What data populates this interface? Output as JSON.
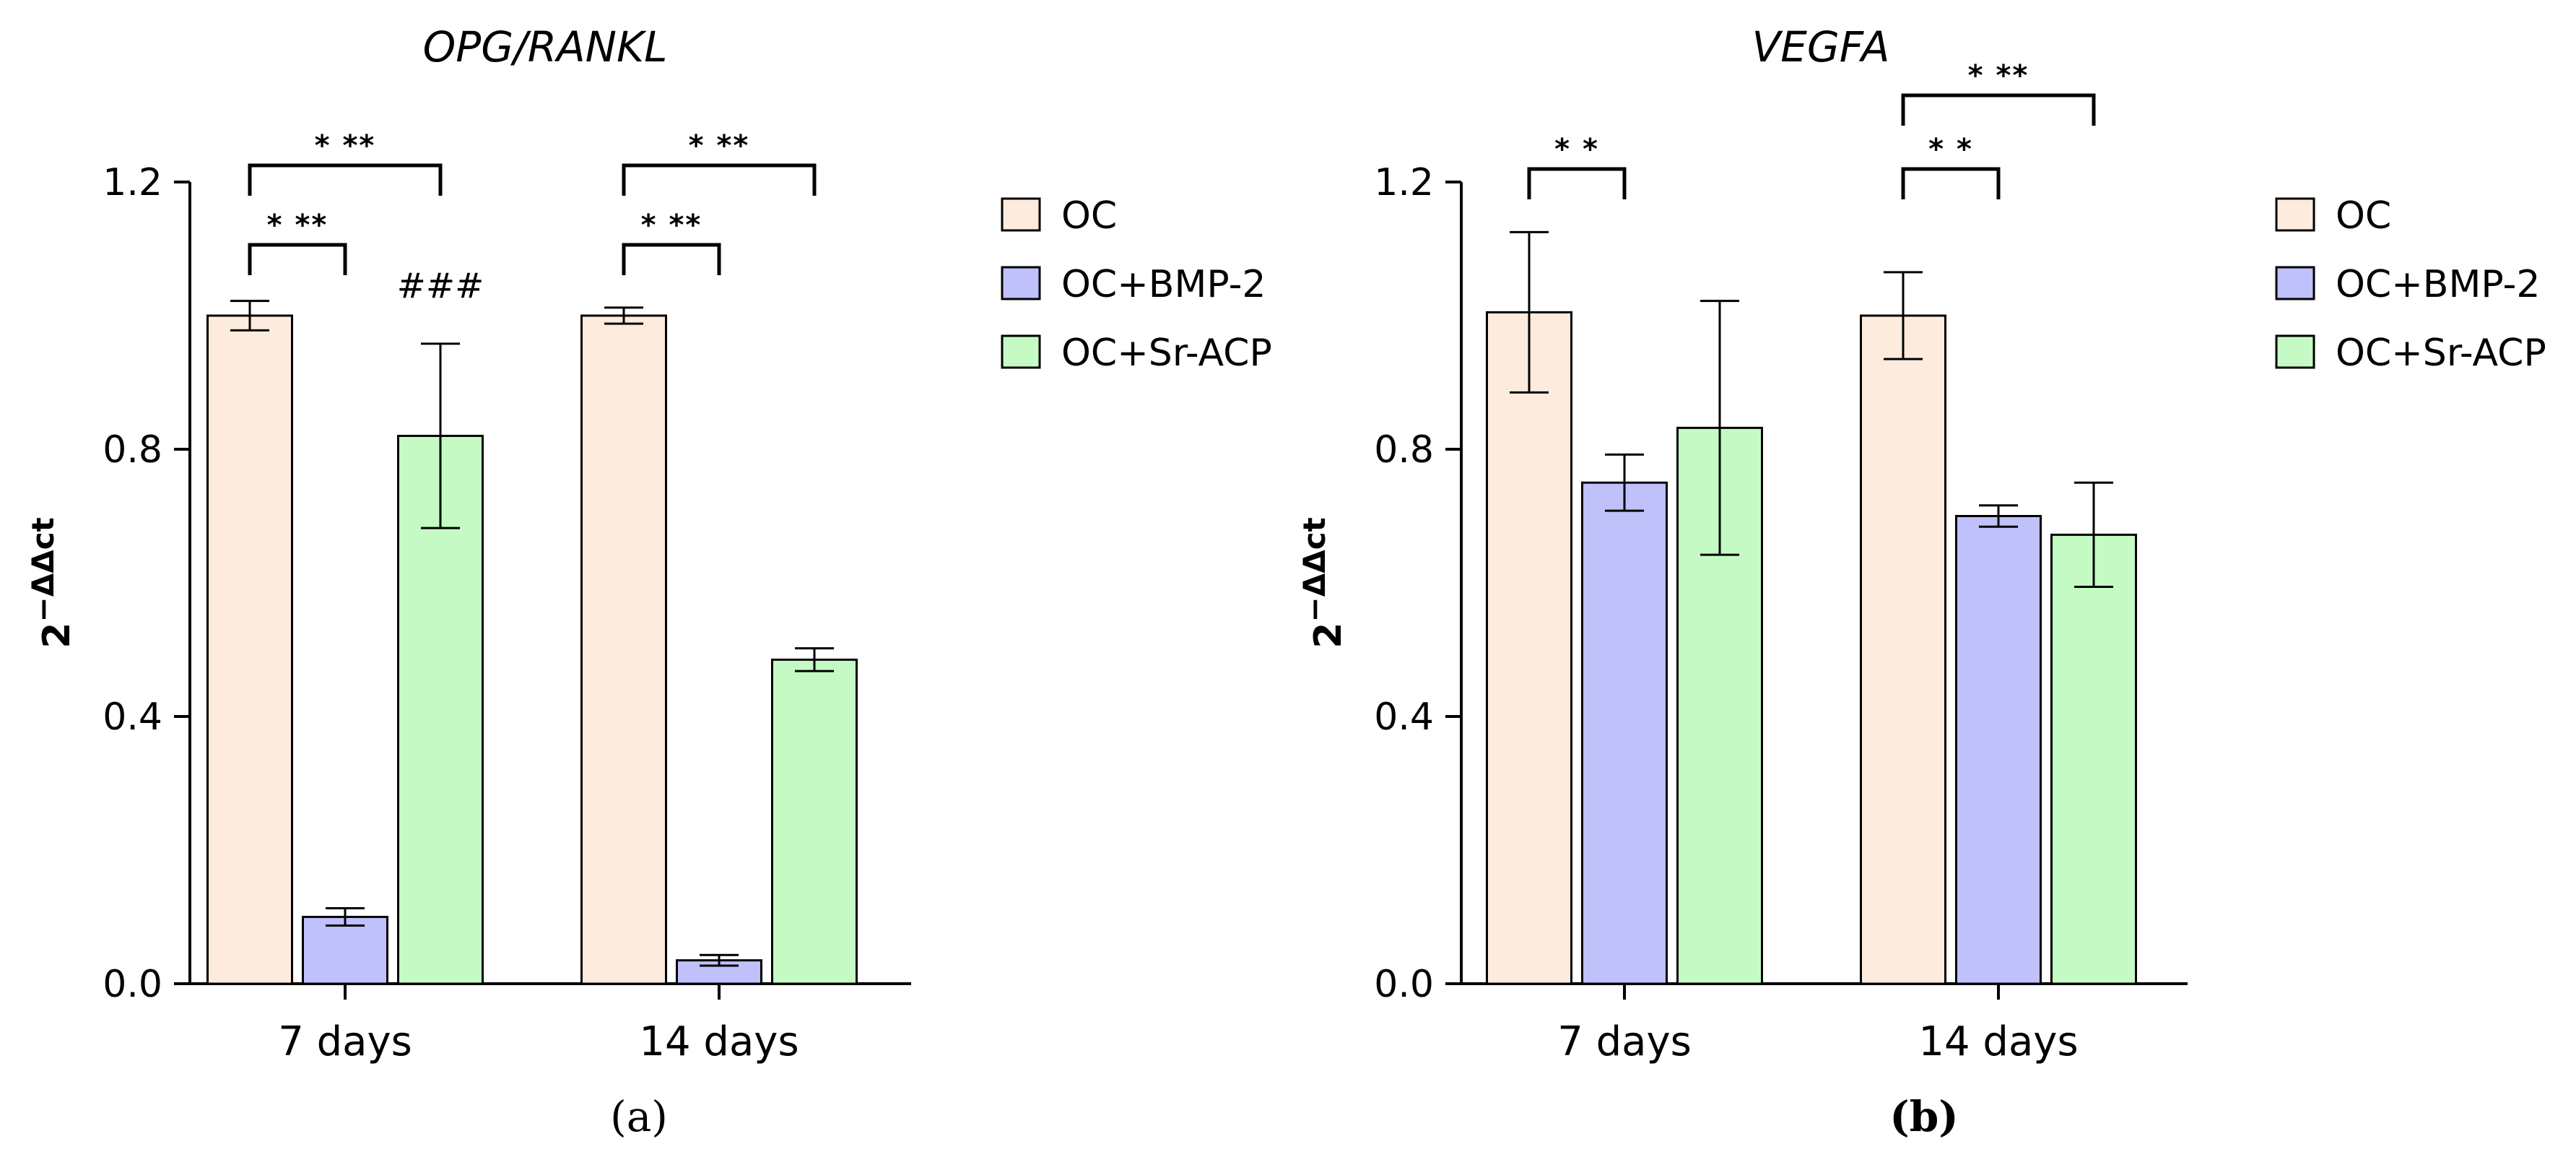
{
  "colors": {
    "OC": "#fdebdd",
    "OC+BMP-2": "#c0c0fb",
    "OC+Sr-ACP": "#c5fac5",
    "stroke": "#000000"
  },
  "legend": [
    "OC",
    "OC+BMP-2",
    "OC+Sr-ACP"
  ],
  "chart_data": [
    {
      "type": "bar",
      "title": "OPG/RANKL",
      "ylabel_base": "2",
      "ylabel_sup": "−ΔΔct",
      "ylim": [
        0,
        1.2
      ],
      "yticks": [
        "0.0",
        "0.4",
        "0.8",
        "1.2"
      ],
      "categories": [
        "7 days",
        "14 days"
      ],
      "series": [
        {
          "name": "OC",
          "values": [
            1.0,
            1.0
          ],
          "errors": [
            0.022,
            0.012
          ]
        },
        {
          "name": "OC+BMP-2",
          "values": [
            0.1,
            0.035
          ],
          "errors": [
            0.013,
            0.008
          ]
        },
        {
          "name": "OC+Sr-ACP",
          "values": [
            0.82,
            0.485
          ],
          "errors": [
            0.138,
            0.017
          ]
        }
      ],
      "significance": [
        {
          "category": 0,
          "from": 0,
          "to": 1,
          "label": "* **",
          "level": 0
        },
        {
          "category": 0,
          "from": 0,
          "to": 2,
          "label": "* **",
          "level": 1
        },
        {
          "category": 1,
          "from": 0,
          "to": 1,
          "label": "* **",
          "level": 0
        },
        {
          "category": 1,
          "from": 0,
          "to": 2,
          "label": "* **",
          "level": 1
        }
      ],
      "annotations": [
        {
          "category": 0,
          "series": 2,
          "text": "###"
        }
      ],
      "panel_label": "(a)",
      "legend": "right"
    },
    {
      "type": "bar",
      "title": "VEGFA",
      "ylabel_base": "2",
      "ylabel_sup": "−ΔΔct",
      "ylim": [
        0,
        1.2
      ],
      "yticks": [
        "0.0",
        "0.4",
        "0.8",
        "1.2"
      ],
      "categories": [
        "7 days",
        "14 days"
      ],
      "series": [
        {
          "name": "OC",
          "values": [
            1.005,
            1.0
          ],
          "errors": [
            0.12,
            0.065
          ]
        },
        {
          "name": "OC+BMP-2",
          "values": [
            0.75,
            0.7
          ],
          "errors": [
            0.042,
            0.016
          ]
        },
        {
          "name": "OC+Sr-ACP",
          "values": [
            0.832,
            0.672
          ],
          "errors": [
            0.19,
            0.078
          ]
        }
      ],
      "significance": [
        {
          "category": 0,
          "from": 0,
          "to": 1,
          "label": "* *",
          "level": 0
        },
        {
          "category": 1,
          "from": 0,
          "to": 1,
          "label": "* *",
          "level": 0
        },
        {
          "category": 1,
          "from": 0,
          "to": 2,
          "label": "* **",
          "level": 1
        }
      ],
      "annotations": [],
      "panel_label": "(b)",
      "legend": "right"
    }
  ]
}
